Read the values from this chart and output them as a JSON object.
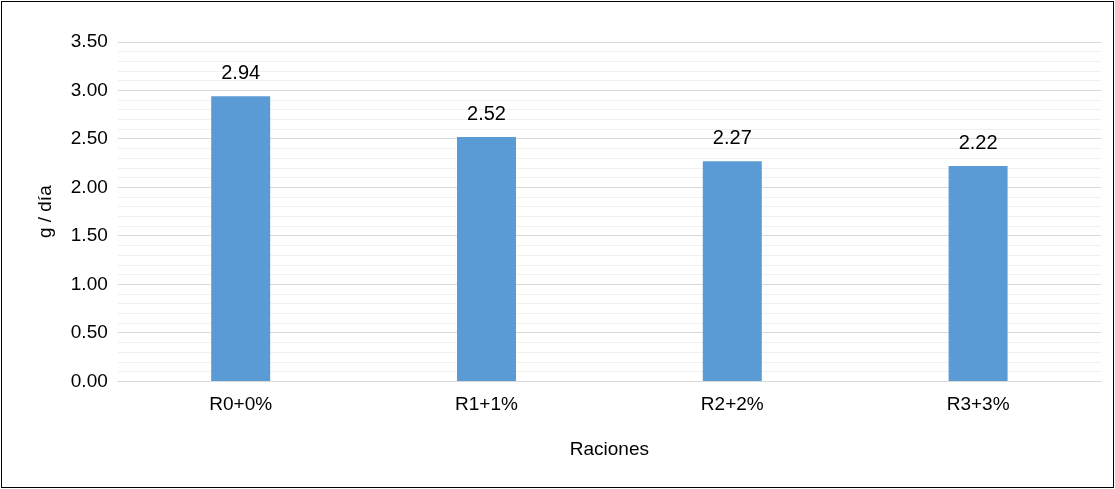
{
  "chart_data": {
    "type": "bar",
    "xlabel": "Raciones",
    "ylabel": "g / día",
    "categories": [
      "R0+0%",
      "R1+1%",
      "R2+2%",
      "R3+3%"
    ],
    "values": [
      2.94,
      2.52,
      2.27,
      2.22
    ],
    "color": "#5b9bd5",
    "data_labels": true,
    "ylim": [
      0,
      3.5
    ],
    "yticks": [
      {
        "value": 0,
        "label": "0.00"
      },
      {
        "value": 0.1,
        "label": null
      },
      {
        "value": 0.2,
        "label": null
      },
      {
        "value": 0.3,
        "label": null
      },
      {
        "value": 0.4,
        "label": null
      },
      {
        "value": 0.5,
        "label": "0.50"
      },
      {
        "value": 0.6,
        "label": null
      },
      {
        "value": 0.7,
        "label": null
      },
      {
        "value": 0.8,
        "label": null
      },
      {
        "value": 0.9,
        "label": null
      },
      {
        "value": 1,
        "label": "1.00"
      },
      {
        "value": 1.1,
        "label": null
      },
      {
        "value": 1.2,
        "label": null
      },
      {
        "value": 1.3,
        "label": null
      },
      {
        "value": 1.4,
        "label": null
      },
      {
        "value": 1.5,
        "label": "1.50"
      },
      {
        "value": 1.6,
        "label": null
      },
      {
        "value": 1.7,
        "label": null
      },
      {
        "value": 1.8,
        "label": null
      },
      {
        "value": 1.9,
        "label": null
      },
      {
        "value": 2,
        "label": "2.00"
      },
      {
        "value": 2.1,
        "label": null
      },
      {
        "value": 2.2,
        "label": null
      },
      {
        "value": 2.3,
        "label": null
      },
      {
        "value": 2.4,
        "label": null
      },
      {
        "value": 2.5,
        "label": "2.50"
      },
      {
        "value": 2.6,
        "label": null
      },
      {
        "value": 2.7,
        "label": null
      },
      {
        "value": 2.8,
        "label": null
      },
      {
        "value": 2.9,
        "label": null
      },
      {
        "value": 3,
        "label": "3.00"
      },
      {
        "value": 3.1,
        "label": null
      },
      {
        "value": 3.2,
        "label": null
      },
      {
        "value": 3.3,
        "label": null
      },
      {
        "value": 3.4,
        "label": null
      },
      {
        "value": 3.5,
        "label": "3.50"
      }
    ],
    "grid": "y"
  }
}
